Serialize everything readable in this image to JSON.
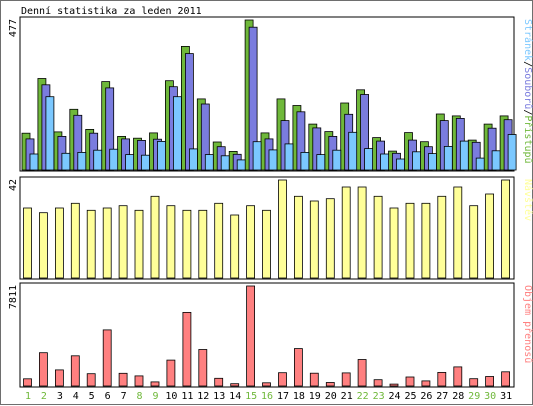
{
  "chart_data": [
    {
      "type": "bar",
      "title": "Denní statistika za leden 2011",
      "ymax_label": "477",
      "legend": [
        "Stránek",
        "Souborů",
        "Přístupů"
      ],
      "categories": [
        "1",
        "2",
        "3",
        "4",
        "5",
        "6",
        "7",
        "8",
        "9",
        "10",
        "11",
        "12",
        "13",
        "14",
        "15",
        "16",
        "17",
        "18",
        "19",
        "20",
        "21",
        "22",
        "23",
        "24",
        "25",
        "26",
        "27",
        "28",
        "29",
        "30",
        "31"
      ],
      "weekend_days": [
        "1",
        "2",
        "8",
        "9",
        "15",
        "16",
        "22",
        "23",
        "29",
        "30"
      ],
      "series": [
        {
          "name": "Přístupů",
          "color": "#6fb83a",
          "values": [
            117,
            291,
            121,
            193,
            129,
            281,
            107,
            101,
            118,
            284,
            393,
            226,
            89,
            59,
            477,
            118,
            226,
            205,
            146,
            122,
            213,
            255,
            103,
            60,
            119,
            90,
            178,
            172,
            95,
            146,
            172
          ]
        },
        {
          "name": "Souborů",
          "color": "#7a7cde",
          "values": [
            99,
            271,
            107,
            174,
            117,
            261,
            99,
            94,
            98,
            265,
            370,
            210,
            74,
            50,
            454,
            99,
            157,
            185,
            134,
            107,
            177,
            240,
            92,
            53,
            95,
            74,
            157,
            164,
            88,
            133,
            160
          ]
        },
        {
          "name": "Stránek",
          "color": "#7bc8ff",
          "values": [
            51,
            233,
            53,
            56,
            63,
            66,
            49,
            47,
            91,
            233,
            67,
            49,
            45,
            32,
            90,
            64,
            83,
            56,
            49,
            63,
            120,
            68,
            51,
            35,
            58,
            52,
            75,
            92,
            38,
            61,
            113
          ]
        }
      ]
    },
    {
      "type": "bar",
      "ymax_label": "42",
      "legend": [
        "Návštěv"
      ],
      "series": [
        {
          "name": "Návštěv",
          "color": "#ffff99",
          "values": [
            30,
            28,
            30,
            32,
            29,
            30,
            31,
            29,
            35,
            31,
            29,
            29,
            32,
            27,
            31,
            29,
            42,
            35,
            33,
            34,
            39,
            39,
            35,
            30,
            32,
            32,
            35,
            39,
            31,
            36,
            42
          ]
        }
      ]
    },
    {
      "type": "bar",
      "ymax_label": "7811",
      "legend": [
        "Objem přenosů"
      ],
      "series": [
        {
          "name": "Objem přenosů",
          "color": "#ff8080",
          "values": [
            560,
            2600,
            1260,
            2360,
            960,
            4380,
            990,
            790,
            320,
            2020,
            5750,
            2850,
            600,
            180,
            7811,
            250,
            1040,
            2920,
            1000,
            270,
            1020,
            2070,
            490,
            150,
            700,
            400,
            1060,
            1490,
            570,
            740,
            1110
          ]
        }
      ]
    }
  ]
}
